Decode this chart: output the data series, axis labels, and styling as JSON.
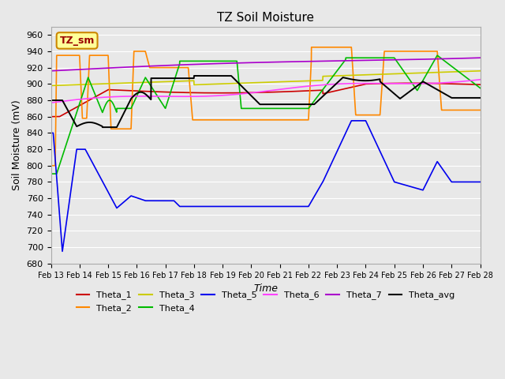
{
  "title": "TZ Soil Moisture",
  "xlabel": "Time",
  "ylabel": "Soil Moisture (mV)",
  "ylim": [
    680,
    970
  ],
  "xlim": [
    0,
    15
  ],
  "background_color": "#e8e8e8",
  "plot_background": "#e8e8e8",
  "legend_label": "TZ_sm",
  "legend_box_color": "#ffff99",
  "legend_box_border": "#cc8800",
  "colors": {
    "Theta_1": "#cc0000",
    "Theta_2": "#ff8800",
    "Theta_3": "#cccc00",
    "Theta_4": "#00bb00",
    "Theta_5": "#0000ee",
    "Theta_6": "#ff44ff",
    "Theta_7": "#aa00cc",
    "Theta_avg": "#000000"
  },
  "xtick_positions": [
    0,
    1,
    2,
    3,
    4,
    5,
    6,
    7,
    8,
    9,
    10,
    11,
    12,
    13,
    14,
    15
  ],
  "xtick_labels": [
    "Feb 13",
    "Feb 14",
    "Feb 15",
    "Feb 16",
    "Feb 17",
    "Feb 18",
    "Feb 19",
    "Feb 20",
    "Feb 21",
    "Feb 22",
    "Feb 23",
    "Feb 24",
    "Feb 25",
    "Feb 26",
    "Feb 27",
    "Feb 28"
  ],
  "ytick_values": [
    680,
    700,
    720,
    740,
    760,
    780,
    800,
    820,
    840,
    860,
    880,
    900,
    920,
    940,
    960
  ]
}
